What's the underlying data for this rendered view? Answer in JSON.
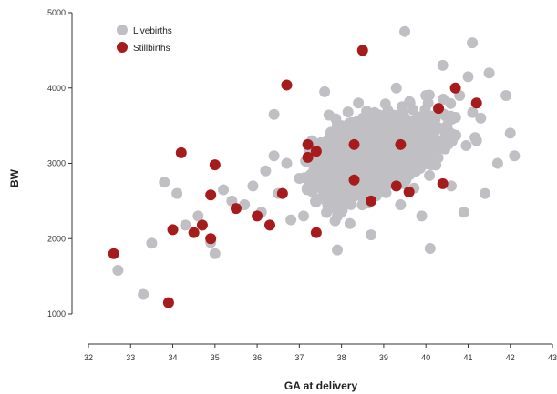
{
  "chart_data": {
    "type": "scatter",
    "xlabel": "GA at delivery",
    "ylabel": "BW",
    "xlim": [
      32,
      43
    ],
    "ylim": [
      1000,
      5000
    ],
    "x_ticks": [
      "32",
      "33",
      "34",
      "35",
      "36",
      "37",
      "38",
      "39",
      "40",
      "41",
      "42",
      "43"
    ],
    "y_ticks": [
      "1000",
      "2000",
      "3000",
      "4000",
      "5000"
    ],
    "legend_position": "top-left",
    "grid": false,
    "series": [
      {
        "name": "Livebirths",
        "color": "#c0c0c4",
        "points": [
          [
            32.7,
            1580
          ],
          [
            33.3,
            1260
          ],
          [
            33.5,
            1940
          ],
          [
            33.8,
            2750
          ],
          [
            34.1,
            2600
          ],
          [
            34.3,
            2180
          ],
          [
            34.6,
            2300
          ],
          [
            34.9,
            1950
          ],
          [
            35.0,
            1800
          ],
          [
            35.2,
            2650
          ],
          [
            35.4,
            2500
          ],
          [
            35.7,
            2450
          ],
          [
            35.9,
            2700
          ],
          [
            36.1,
            2350
          ],
          [
            36.2,
            2900
          ],
          [
            36.4,
            3100
          ],
          [
            36.5,
            2600
          ],
          [
            36.4,
            3650
          ],
          [
            36.7,
            3000
          ],
          [
            36.8,
            2250
          ],
          [
            37.0,
            2800
          ],
          [
            37.1,
            2300
          ],
          [
            37.3,
            3300
          ],
          [
            37.5,
            2700
          ],
          [
            37.6,
            3950
          ],
          [
            37.8,
            2500
          ],
          [
            37.9,
            1850
          ],
          [
            38.0,
            3500
          ],
          [
            38.2,
            2200
          ],
          [
            38.4,
            3800
          ],
          [
            38.6,
            3300
          ],
          [
            38.7,
            2050
          ],
          [
            38.9,
            2900
          ],
          [
            39.1,
            3700
          ],
          [
            39.3,
            4000
          ],
          [
            39.4,
            2450
          ],
          [
            39.5,
            4750
          ],
          [
            39.7,
            3100
          ],
          [
            39.9,
            2300
          ],
          [
            40.0,
            3900
          ],
          [
            40.1,
            1870
          ],
          [
            40.2,
            3300
          ],
          [
            40.4,
            4300
          ],
          [
            40.5,
            3500
          ],
          [
            40.6,
            2700
          ],
          [
            40.8,
            3900
          ],
          [
            40.9,
            2350
          ],
          [
            41.0,
            4150
          ],
          [
            41.1,
            4600
          ],
          [
            41.2,
            3300
          ],
          [
            41.4,
            2600
          ],
          [
            41.5,
            4200
          ],
          [
            41.7,
            3000
          ],
          [
            41.9,
            3900
          ],
          [
            42.0,
            3400
          ],
          [
            42.1,
            3100
          ],
          [
            38.5,
            3600
          ],
          [
            39.0,
            3300
          ],
          [
            40.3,
            3700
          ],
          [
            41.3,
            3600
          ]
        ]
      },
      {
        "name": "Stillbirths",
        "color": "#a61c1c",
        "points": [
          [
            32.6,
            1800
          ],
          [
            33.9,
            1150
          ],
          [
            34.0,
            2120
          ],
          [
            34.2,
            3140
          ],
          [
            34.5,
            2080
          ],
          [
            34.7,
            2180
          ],
          [
            34.9,
            2580
          ],
          [
            34.9,
            2000
          ],
          [
            35.0,
            2980
          ],
          [
            35.5,
            2400
          ],
          [
            36.0,
            2300
          ],
          [
            36.3,
            2180
          ],
          [
            36.6,
            2600
          ],
          [
            36.7,
            4040
          ],
          [
            37.2,
            3250
          ],
          [
            37.2,
            3080
          ],
          [
            37.4,
            3160
          ],
          [
            37.4,
            2080
          ],
          [
            38.3,
            3250
          ],
          [
            38.3,
            2780
          ],
          [
            38.5,
            4500
          ],
          [
            38.7,
            2500
          ],
          [
            39.3,
            2700
          ],
          [
            39.4,
            3250
          ],
          [
            39.6,
            2620
          ],
          [
            40.3,
            3730
          ],
          [
            40.4,
            2730
          ],
          [
            40.7,
            4000
          ],
          [
            41.2,
            3800
          ]
        ]
      }
    ]
  }
}
